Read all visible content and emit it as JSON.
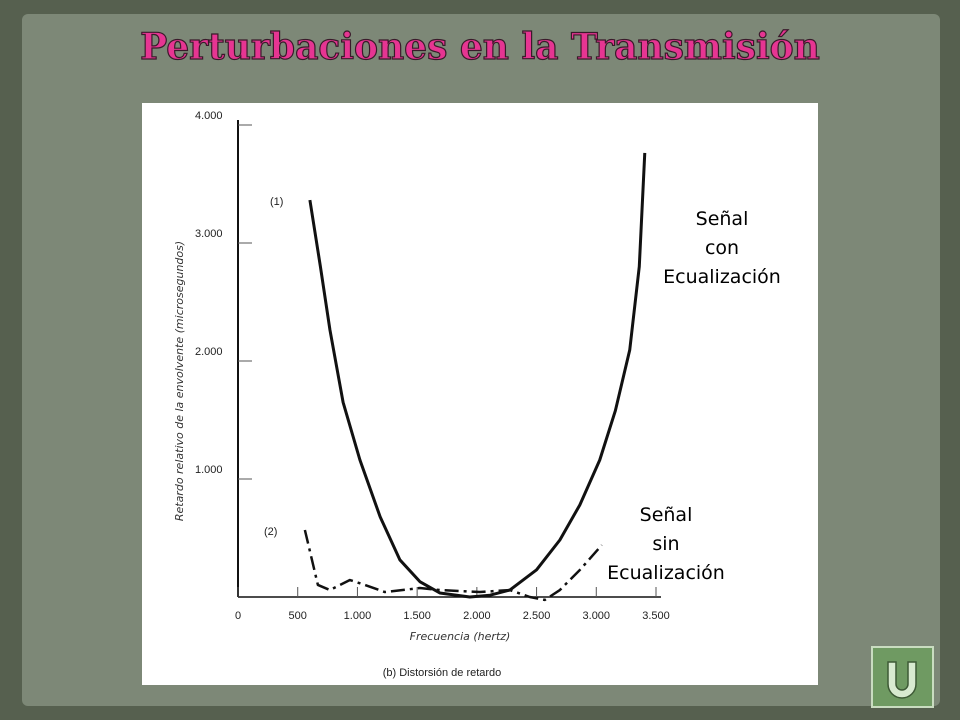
{
  "slide": {
    "title": "Perturbaciones en la Transmisión"
  },
  "chart_data": {
    "type": "line",
    "y_label": "Retardo relativo de la envolvente (microsegundos)",
    "x_label": "Frecuencia (hertz)",
    "caption": "(b) Distorsión de retardo",
    "annotations": [
      "Señal\ncon\nEcualización",
      "Señal\nsin\nEcualización"
    ],
    "xlim": [
      0,
      3500
    ],
    "ylim": [
      0,
      4000
    ],
    "xticks": [
      0,
      500,
      {
        "value": 1000,
        "label": "1.000"
      },
      {
        "value": 1500,
        "label": "1.500"
      },
      {
        "value": 2000,
        "label": "2.000"
      },
      {
        "value": 2500,
        "label": "2.500"
      },
      {
        "value": 3000,
        "label": "3.000"
      },
      {
        "value": 3500,
        "label": "3.500"
      }
    ],
    "yticks": [
      {
        "value": 1000,
        "label": "1.000"
      },
      {
        "value": 2000,
        "label": "2.000"
      },
      {
        "value": 3000,
        "label": "3.000"
      },
      {
        "value": 4000,
        "label": "4.000"
      }
    ],
    "series": [
      {
        "name": "(1)",
        "color": "#111111",
        "dash": "solid",
        "x": [
          602,
          690,
          770,
          880,
          1021,
          1190,
          1356,
          1523,
          1690,
          1941,
          2110,
          2276,
          2500,
          2695,
          2862,
          3029,
          3160,
          3280,
          3360,
          3406
        ],
        "values": [
          3364,
          2800,
          2263,
          1650,
          1161,
          680,
          314,
          130,
          34,
          0,
          15,
          59,
          230,
          483,
          780,
          1161,
          1580,
          2093,
          2800,
          3763
        ]
      },
      {
        "name": "(2)",
        "color": "#111111",
        "dash": "dashdot",
        "x": [
          560,
          669,
          770,
          937,
          1063,
          1230,
          1523,
          1690,
          2025,
          2276,
          2444,
          2569,
          2695,
          2862,
          3046
        ],
        "values": [
          568,
          102,
          59,
          144,
          102,
          42,
          76,
          59,
          42,
          59,
          0,
          -25,
          59,
          229,
          440
        ]
      }
    ]
  }
}
